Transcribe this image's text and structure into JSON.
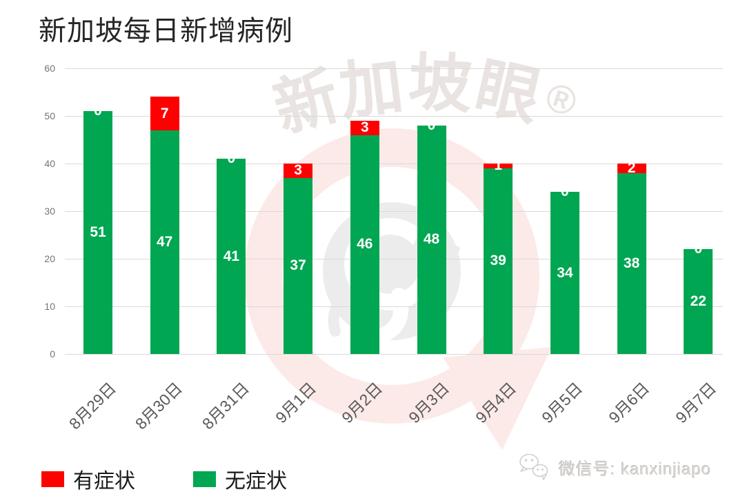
{
  "title": "新加坡每日新增病例",
  "watermark": {
    "text": "新加坡眼",
    "reg_mark": "®"
  },
  "legend": {
    "items": [
      {
        "label": "有症状",
        "color": "#fe0000"
      },
      {
        "label": "无症状",
        "color": "#00a651"
      }
    ]
  },
  "footer": {
    "wechat_label": "微信号: kanxinjiapo"
  },
  "chart_data": {
    "type": "bar",
    "stacked": true,
    "title": "新加坡每日新增病例",
    "categories": [
      "8月29日",
      "8月30日",
      "8月31日",
      "9月1日",
      "9月2日",
      "9月3日",
      "9月4日",
      "9月5日",
      "9月6日",
      "9月7日"
    ],
    "series": [
      {
        "name": "无症状",
        "color": "#00a651",
        "values": [
          51,
          47,
          41,
          37,
          46,
          48,
          39,
          34,
          38,
          22
        ]
      },
      {
        "name": "有症状",
        "color": "#fe0000",
        "values": [
          0,
          7,
          0,
          3,
          3,
          0,
          1,
          0,
          2,
          0
        ]
      }
    ],
    "xlabel": "",
    "ylabel": "",
    "ylim": [
      0,
      60
    ],
    "yticks": [
      0,
      10,
      20,
      30,
      40,
      50,
      60
    ],
    "grid": true,
    "bar_value_labels": true,
    "legend_position": "bottom"
  }
}
